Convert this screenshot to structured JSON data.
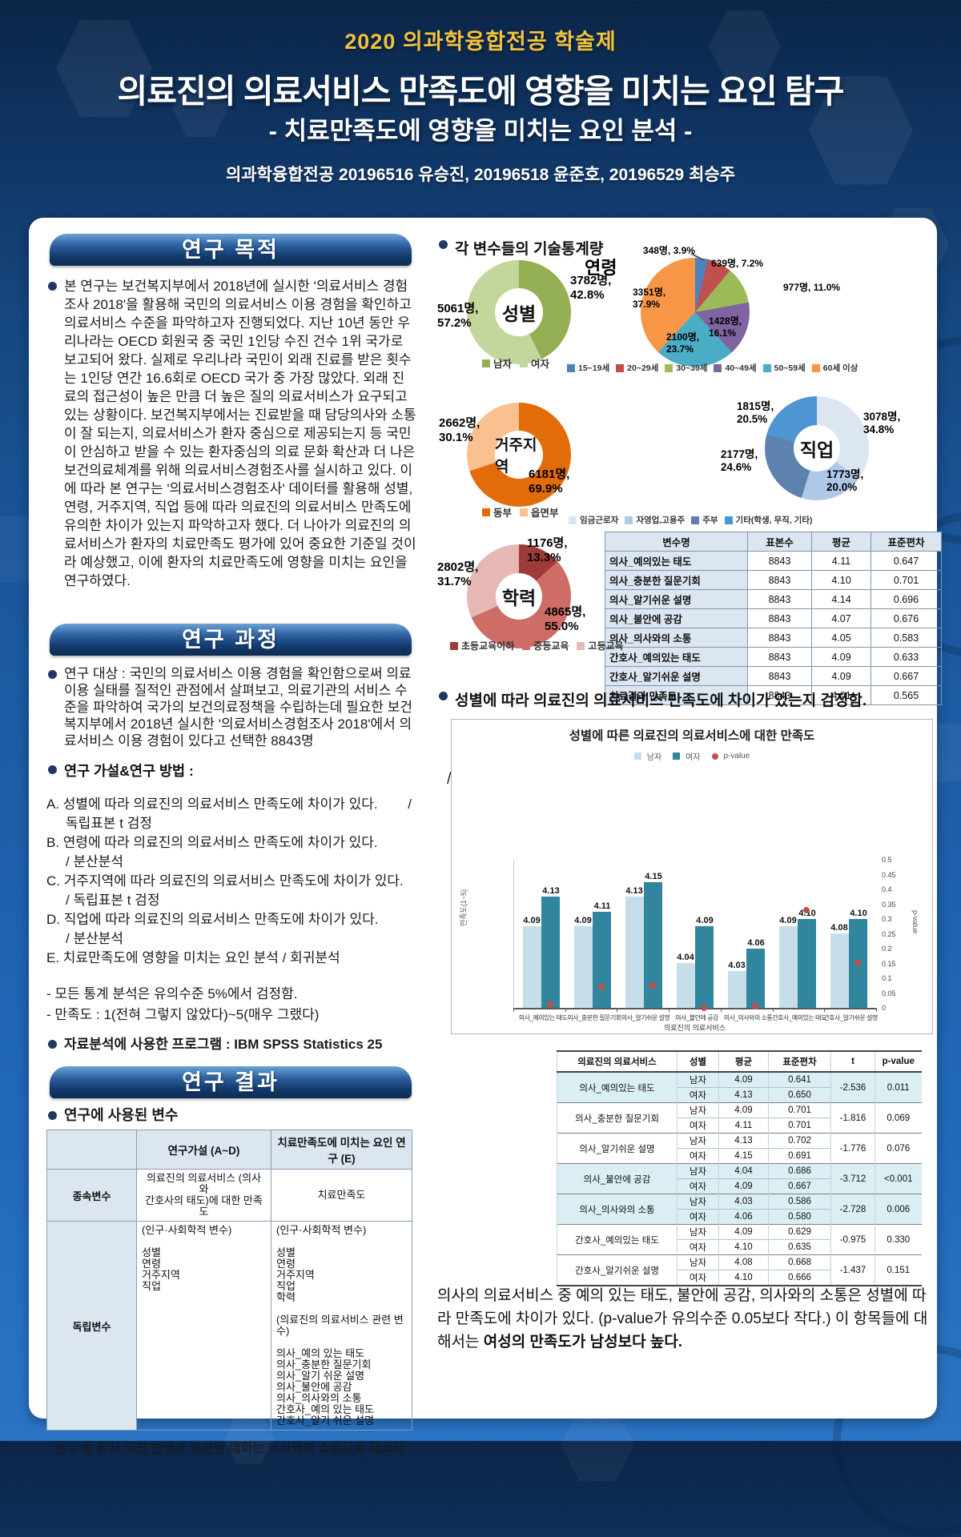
{
  "colors": {
    "accent_gold": "#F2C23E",
    "page_bg": "#1a559a",
    "panel": "#FFFFFF",
    "section_bar": "#123a6b",
    "bullet": "#1F3864",
    "male_bar": "#C6DEEA",
    "female_bar": "#31859C",
    "pvalue_dot": "#C0504D",
    "table_header_bg": "#DCE6F1",
    "highlight_row_bg": "#DAEEF3"
  },
  "header": {
    "event": "2020 의과학융합전공 학술제",
    "title": "의료진의 의료서비스 만족도에 영향을 미치는 요인 탐구",
    "subtitle": "- 치료만족도에 영향을 미치는 요인 분석 -",
    "authors": "의과학융합전공 20196516 유승진, 20196518 윤준호, 20196529 최승주"
  },
  "left": {
    "purpose_heading": "연구 목적",
    "purpose_body": "본 연구는 보건복지부에서 2018년에 실시한 '의료서비스 경험조사 2018'을 활용해 국민의 의료서비스 이용 경험을 확인하고 의료서비스 수준을 파악하고자 진행되었다. 지난 10년 동안 우리나라는 OECD 회원국 중 국민 1인당 수진 건수 1위 국가로 보고되어 왔다. 실제로 우리나라 국민이 외래 진료를 받은 횟수는 1인당 연간 16.6회로 OECD 국가 중 가장 많았다. 외래 진료의 접근성이 높은 만큼 더 높은 질의 의료서비스가 요구되고 있는 상황이다. 보건복지부에서는 진료받을 때 담당의사와 소통이 잘 되는지, 의료서비스가 환자 중심으로 제공되는지 등 국민이 안심하고 받을 수 있는 환자중심의 의료 문화 확산과 더 나은 보건의료체계를 위해 의료서비스경험조사를 실시하고 있다. 이에 따라 본 연구는 '의료서비스경험조사' 데이터를 활용해 성별, 연령, 거주지역, 직업 등에 따라 의료진의 의료서비스 만족도에 유의한 차이가 있는지 파악하고자 했다. 더 나아가 의료진의 의료서비스가 환자의 치료만족도 평가에 있어 중요한 기준일 것이라 예상했고, 이에 환자의 치료만족도에 영향을 미치는 요인을 연구하였다.",
    "process_heading": "연구 과정",
    "subject": "연구 대상 : 국민의 의료서비스 이용 경험을 확인함으로써 의료이용 실태를 질적인 관점에서 살펴보고, 의료기관의 서비스 수준을 파악하여 국가의 보건의료정책을 수립하는데 필요한 보건복지부에서 2018년 실시한 '의료서비스경험조사 2018'에서 의료서비스 이용 경험이 있다고 선택한 8843명",
    "hypotheses_label": "연구 가설&연구 방법 :",
    "hypotheses": [
      {
        "main": "A.  성별에 따라 의료진의 의료서비스 만족도에 차이가 있다.",
        "tail": "/",
        "method": "독립표본 t 검정"
      },
      {
        "main": "B. 연령에 따라 의료진의 의료서비스 만족도에 차이가 있다.",
        "tail": "",
        "method": "/ 분산분석"
      },
      {
        "main": "C. 거주지역에 따라 의료진의 의료서비스 만족도에 차이가 있다.",
        "tail": "",
        "method": "/ 독립표본 t 검정"
      },
      {
        "main": "D. 직업에 따라 의료진의 의료서비스 만족도에 차이가 있다.",
        "tail": "",
        "method": "/ 분산분석"
      },
      {
        "main": "E. 치료만족도에 영향을 미치는 요인 분석 / 회귀분석",
        "tail": "",
        "method": ""
      }
    ],
    "notes": [
      "- 모든 통계 분석은 유의수준 5%에서 검정함.",
      "- 만족도 : 1(전혀 그렇지 않았다)~5(매우 그랬다)"
    ],
    "program": "자료분석에 사용한 프로그램 : IBM SPSS Statistics 25",
    "results_heading": "연구 결과",
    "vars_label": "연구에 사용된 변수",
    "vars_table": {
      "headers": [
        "",
        "연구가설 (A~D)",
        "치료만족도에 미치는 요인 연구 (E)"
      ],
      "row1_label": "종속변수",
      "row1_c1": "의료진의 의료서비스 (의사와\n간호사의 태도)에 대한 만족도",
      "row1_c2": "치료만족도",
      "row2_label": "독립변수",
      "row2_c1": "(인구·사회학적 변수)\n\n성별\n연령\n거주지역\n직업",
      "row2_c2": "(인구·사회학적 변수)\n\n성별\n연령\n거주지역\n직업\n학력\n\n(의료진의 의료서비스 관련 변수)\n\n의사_예의 있는 태도\n의사_충분한 질문기회\n의사_알기 쉬운 설명\n의사_불안에 공감\n의사_의사와의 소통\n간호사_예의 있는 태도\n간호사_알기 쉬운 설명"
    },
    "vars_footnote": "- 변수 중 환자 의견 반영과 충분한 대화는 의사와의 소통으로 재코딩"
  },
  "right": {
    "desc_label": "각 변수들의 기술통계량",
    "stats_table": {
      "headers": [
        "변수명",
        "표본수",
        "평균",
        "표준편차"
      ],
      "rows": [
        [
          "의사_예의있는 태도",
          "8843",
          "4.11",
          "0.647"
        ],
        [
          "의사_충분한 질문기회",
          "8843",
          "4.10",
          "0.701"
        ],
        [
          "의사_알기쉬운 설명",
          "8843",
          "4.14",
          "0.696"
        ],
        [
          "의사_불안에 공감",
          "8843",
          "4.07",
          "0.676"
        ],
        [
          "의사_의사와의 소통",
          "8843",
          "4.05",
          "0.583"
        ],
        [
          "간호사_예의있는 태도",
          "8843",
          "4.09",
          "0.633"
        ],
        [
          "간호사_알기쉬운 설명",
          "8843",
          "4.09",
          "0.667"
        ],
        [
          "치료결과 만족도",
          "8843",
          "4.01",
          "0.565"
        ]
      ]
    },
    "gender_test_label": "성별에 따라 의료진의 의료서비스 만족도에 차이가 있는지 검정함.",
    "stray_mark": "/",
    "ttest": {
      "headers": [
        "의료진의 의료서비스",
        "성별",
        "평균",
        "표준편차",
        "t",
        "p-value"
      ],
      "male_label": "남자",
      "female_label": "여자",
      "rows": [
        {
          "variable": "의사_예의있는 태도",
          "male": [
            "4.09",
            "0.641"
          ],
          "female": [
            "4.13",
            "0.650"
          ],
          "t": "-2.536",
          "p": "0.011",
          "highlight": true
        },
        {
          "variable": "의사_충분한 질문기회",
          "male": [
            "4.09",
            "0.701"
          ],
          "female": [
            "4.11",
            "0.701"
          ],
          "t": "-1.816",
          "p": "0.069",
          "highlight": false
        },
        {
          "variable": "의사_알기쉬운 설명",
          "male": [
            "4.13",
            "0.702"
          ],
          "female": [
            "4.15",
            "0.691"
          ],
          "t": "-1.776",
          "p": "0.076",
          "highlight": false
        },
        {
          "variable": "의사_불안에 공감",
          "male": [
            "4.04",
            "0.686"
          ],
          "female": [
            "4.09",
            "0.667"
          ],
          "t": "-3.712",
          "p": "<0.001",
          "highlight": true
        },
        {
          "variable": "의사_의사와의 소통",
          "male": [
            "4.03",
            "0.586"
          ],
          "female": [
            "4.06",
            "0.580"
          ],
          "t": "-2.728",
          "p": "0.006",
          "highlight": true
        },
        {
          "variable": "간호사_예의있는 태도",
          "male": [
            "4.09",
            "0.629"
          ],
          "female": [
            "4.10",
            "0.635"
          ],
          "t": "-0.975",
          "p": "0.330",
          "highlight": false
        },
        {
          "variable": "간호사_알기쉬운 설명",
          "male": [
            "4.08",
            "0.668"
          ],
          "female": [
            "4.10",
            "0.666"
          ],
          "t": "-1.437",
          "p": "0.151",
          "highlight": false
        }
      ]
    },
    "conclusion_pre": "의사의 의료서비스 중 예의 있는 태도, 불안에 공감, 의사와의 소통은 성별에 따라 만족도에 차이가 있다. (p-value가 유의수준 0.05보다 작다.) 이 항목들에 대해서는 ",
    "conclusion_bold": "여성의 만족도가 남성보다 높다."
  },
  "chart_data": {
    "gender": {
      "type": "donut",
      "center": "성별",
      "slices": [
        {
          "label": "남자",
          "value": 3782,
          "pct": 42.8,
          "display": "3782명, 42.8%",
          "color": "#94AF54"
        },
        {
          "label": "여자",
          "value": 5061,
          "pct": 57.2,
          "display": "5061명, 57.2%",
          "color": "#C3D69B"
        }
      ]
    },
    "age": {
      "type": "pie",
      "title": "연령",
      "slices": [
        {
          "label": "15~19세",
          "value": 348,
          "pct": 3.9,
          "display": "348명, 3.9%",
          "color": "#4F81BD"
        },
        {
          "label": "20~29세",
          "value": 639,
          "pct": 7.2,
          "display": "639명, 7.2%",
          "color": "#C0504D"
        },
        {
          "label": "30~39세",
          "value": 977,
          "pct": 11.0,
          "display": "977명, 11.0%",
          "color": "#9BBB59"
        },
        {
          "label": "40~49세",
          "value": 1428,
          "pct": 16.1,
          "display": "1428명, 16.1%",
          "color": "#8064A2"
        },
        {
          "label": "50~59세",
          "value": 2100,
          "pct": 23.7,
          "display": "2100명, 23.7%",
          "color": "#4BACC6"
        },
        {
          "label": "60세 이상",
          "value": 3351,
          "pct": 37.9,
          "display": "3351명, 37.9%",
          "color": "#F79646"
        }
      ]
    },
    "residence": {
      "type": "donut",
      "center": "거주지역",
      "slices": [
        {
          "label": "동부",
          "value": 6181,
          "pct": 69.9,
          "display": "6181명, 69.9%",
          "color": "#E36C0A"
        },
        {
          "label": "읍면부",
          "value": 2662,
          "pct": 30.1,
          "display": "2662명, 30.1%",
          "color": "#FAC090"
        }
      ]
    },
    "occupation": {
      "type": "donut",
      "center": "직업",
      "slices": [
        {
          "label": "임금근로자",
          "value": 3078,
          "pct": 34.8,
          "display": "3078명, 34.8%",
          "color": "#DCE6F1"
        },
        {
          "label": "자영업,고용주",
          "value": 1773,
          "pct": 20.0,
          "display": "1773명, 20.0%",
          "color": "#AFC8E8"
        },
        {
          "label": "주부",
          "value": 2177,
          "pct": 24.6,
          "display": "2177명, 24.6%",
          "color": "#5E82AE"
        },
        {
          "label": "기타(학생, 무직, 기타)",
          "value": 1815,
          "pct": 20.5,
          "display": "1815명, 20.5%",
          "color": "#4E96D2"
        }
      ]
    },
    "education": {
      "type": "donut",
      "center": "학력",
      "slices": [
        {
          "label": "초등교육이하",
          "value": 1176,
          "pct": 13.3,
          "display": "1176명, 13.3%",
          "color": "#9E3B38"
        },
        {
          "label": "중등교육",
          "value": 4865,
          "pct": 55.0,
          "display": "4865명, 55.0%",
          "color": "#CE6C66"
        },
        {
          "label": "고등교육",
          "value": 2802,
          "pct": 31.7,
          "display": "2802명, 31.7%",
          "color": "#E5B8B4"
        }
      ]
    },
    "satisfaction_bar": {
      "type": "bar",
      "title": "성별에 따른 의료진의 의료서비스에 대한 만족도",
      "xlabel": "의료진의 의료서비스",
      "ylabel_left": "만족도(1~5)",
      "ylabel_right": "p-value",
      "legend": [
        "남자",
        "여자",
        "p-value"
      ],
      "categories": [
        "의사_예의있는 태도",
        "의사_충분한 질문기회",
        "의사_알기쉬운 설명",
        "의사_불안에 공감",
        "의사_의사와의 소통",
        "간호사_예의있는 태도",
        "간호사_알기쉬운 설명"
      ],
      "series": [
        {
          "name": "남자",
          "values": [
            "4.09",
            "4.09",
            "4.13",
            "4.04",
            "4.03",
            "4.09",
            "4.08"
          ]
        },
        {
          "name": "여자",
          "values": [
            "4.13",
            "4.11",
            "4.15",
            "4.09",
            "4.06",
            "4.10",
            "4.10"
          ]
        }
      ],
      "p_values": [
        0.011,
        0.069,
        0.076,
        0.0008,
        0.006,
        0.33,
        0.151
      ],
      "right_axis_ticks": [
        "0",
        "0.05",
        "0.1",
        "0.15",
        "0.2",
        "0.25",
        "0.3",
        "0.35",
        "0.4",
        "0.45",
        "0.5"
      ],
      "left_axis_range": [
        3.98,
        4.18
      ],
      "right_axis_range": [
        0,
        0.5
      ]
    }
  }
}
